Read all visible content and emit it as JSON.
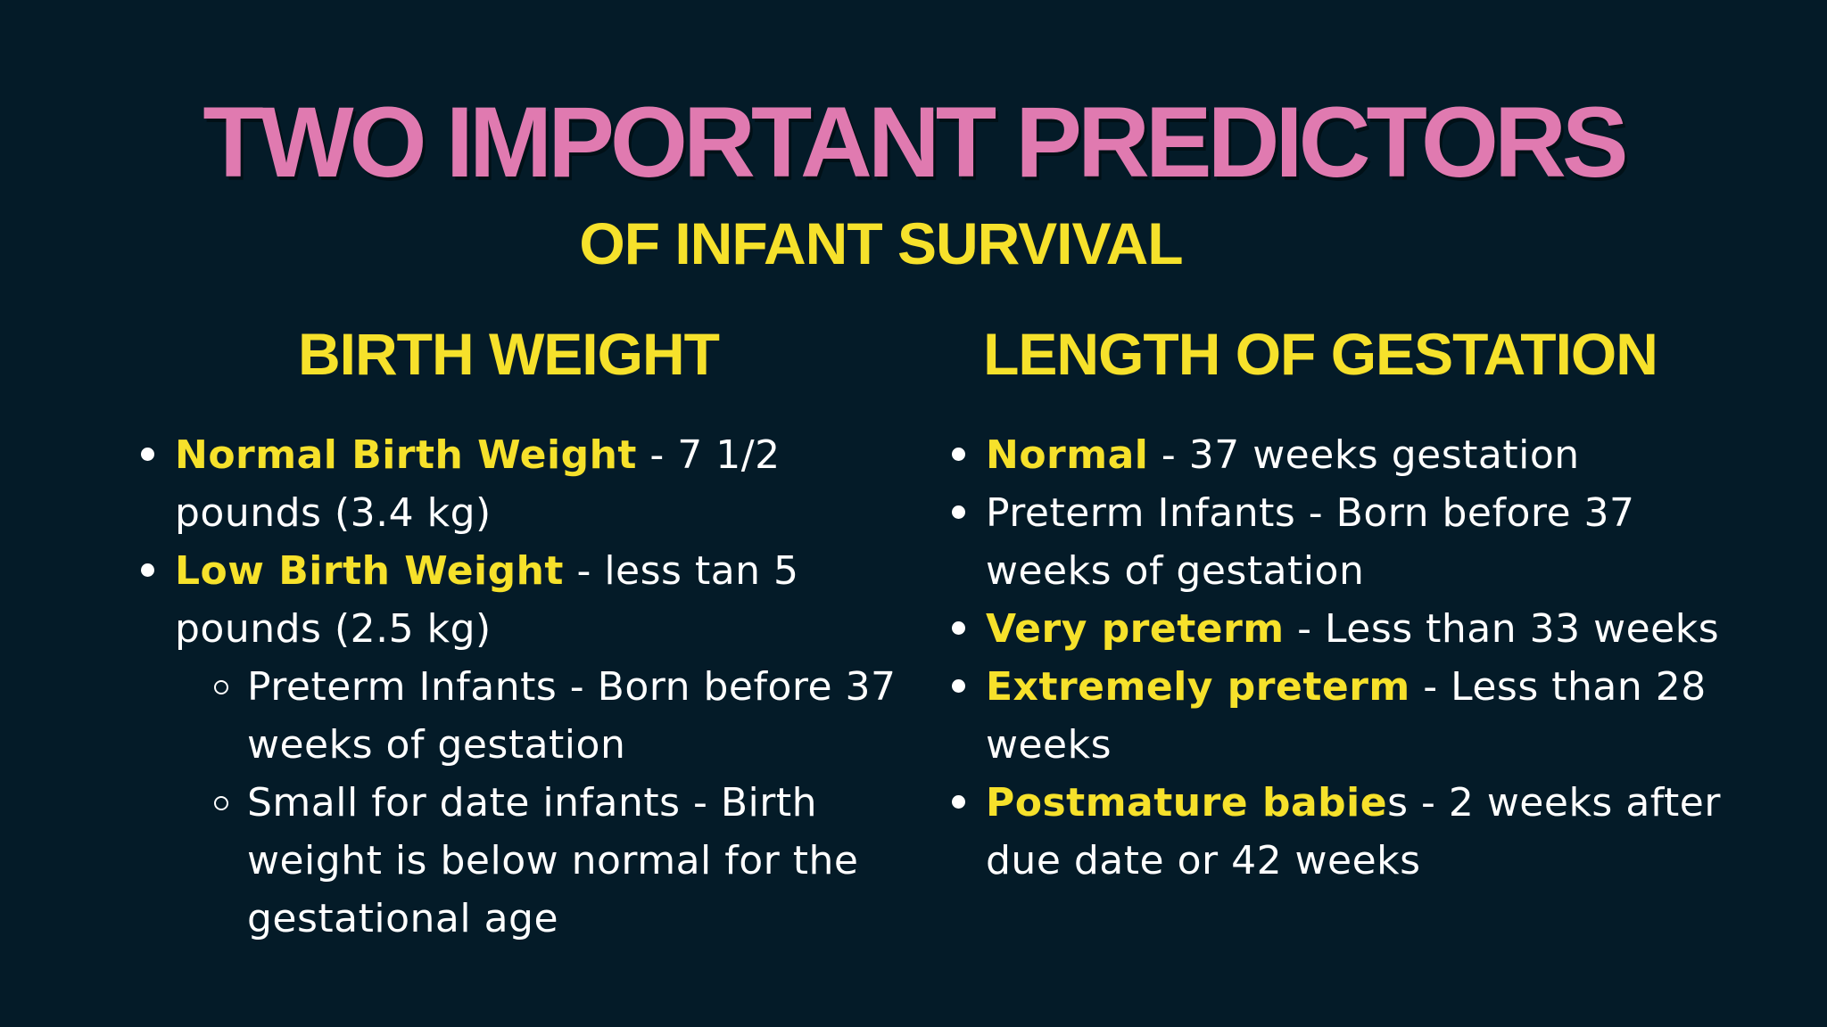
{
  "title": "TWO IMPORTANT PREDICTORS",
  "subtitle": "OF INFANT SURVIVAL",
  "left_column": {
    "heading": "BIRTH WEIGHT",
    "items": [
      {
        "term": "Normal Birth Weight",
        "text": " - 7 1/2 pounds (3.4 kg)"
      },
      {
        "term": "Low Birth Weight",
        "text": " - less tan 5 pounds (2.5 kg)"
      }
    ],
    "sub_items": [
      {
        "text": "Preterm Infants - Born before 37 weeks of gestation"
      },
      {
        "text": "Small for date infants - Birth weight is below normal for the gestational age"
      }
    ]
  },
  "right_column": {
    "heading": "LENGTH OF GESTATION",
    "items": [
      {
        "term": "Normal",
        "text": " - 37 weeks gestation"
      },
      {
        "term": "",
        "text": "Preterm Infants -  Born before 37 weeks of gestation"
      },
      {
        "term": "Very preterm",
        "text": " - Less than 33 weeks"
      },
      {
        "term": "Extremely preterm",
        "text": " - Less than 28 weeks"
      },
      {
        "term": "Postmature babie",
        "text": "s - 2 weeks after due date or 42 weeks"
      }
    ]
  },
  "colors": {
    "background": "#041b28",
    "title_pink": "#e07ab0",
    "accent_yellow": "#f6e12b",
    "body_text": "#ffffff"
  }
}
